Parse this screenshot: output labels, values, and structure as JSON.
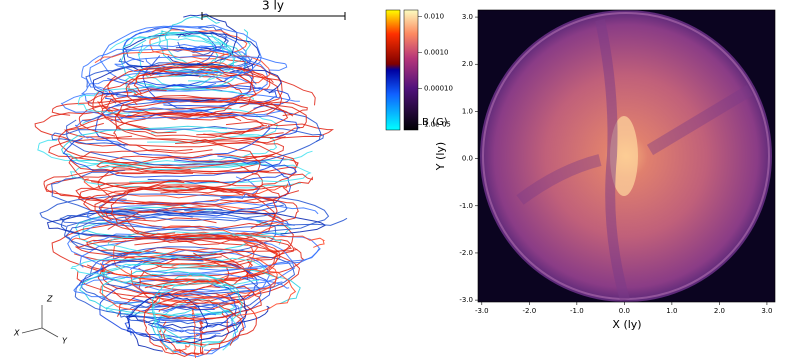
{
  "chart_data": [
    {
      "type": "streamlines",
      "scale_bar": "3 ly",
      "axis_labels": [
        "X",
        "Y",
        "Z"
      ],
      "colorbar": {
        "label": "B (G)",
        "log": true,
        "clim": [
          7e-06,
          0.015
        ],
        "ticks": [
          {
            "value": 0.01,
            "label": "0.010"
          },
          {
            "value": 0.001,
            "label": "0.0010"
          },
          {
            "value": 0.0001,
            "label": "0.00010"
          },
          {
            "value": 1e-05,
            "label": "1.0e-05"
          }
        ]
      }
    },
    {
      "type": "image",
      "xlabel": "X (ly)",
      "ylabel": "Y (ly)",
      "xlim": [
        -3.08,
        3.17
      ],
      "ylim": [
        -3.04,
        3.15
      ],
      "xticks": [
        {
          "value": -3,
          "label": "-3.0"
        },
        {
          "value": -2,
          "label": "-2.0"
        },
        {
          "value": -1,
          "label": "-1.0"
        },
        {
          "value": 0,
          "label": "0.0"
        },
        {
          "value": 1,
          "label": "1.0"
        },
        {
          "value": 2,
          "label": "2.0"
        },
        {
          "value": 3,
          "label": "3.0"
        }
      ],
      "yticks": [
        {
          "value": -3,
          "label": "-3.0"
        },
        {
          "value": -2,
          "label": "-2.0"
        },
        {
          "value": -1,
          "label": "-1.0"
        },
        {
          "value": 0,
          "label": "0.0"
        },
        {
          "value": 1,
          "label": "1.0"
        },
        {
          "value": 2,
          "label": "2.0"
        },
        {
          "value": 3,
          "label": "3.0"
        }
      ]
    }
  ]
}
